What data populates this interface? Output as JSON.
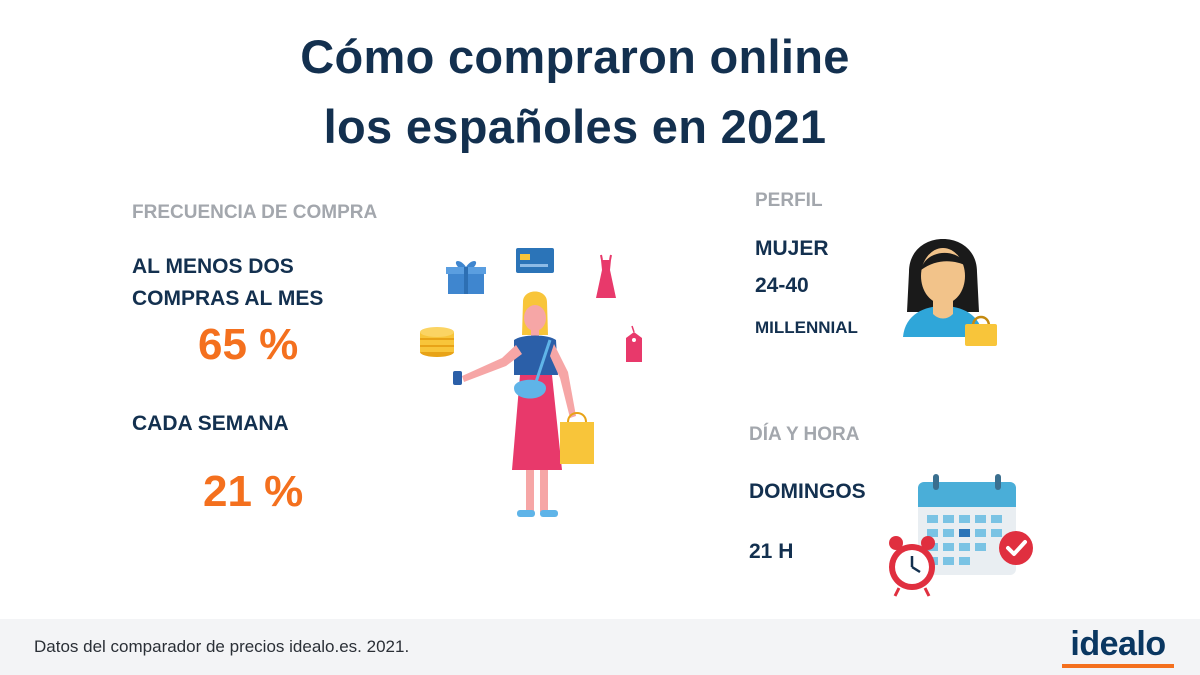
{
  "title": {
    "line1": "Cómo compraron online",
    "line2": "los españoles en 2021"
  },
  "frecuencia": {
    "heading": "FRECUENCIA DE COMPRA",
    "item1_line1": "AL MENOS DOS",
    "item1_line2": "COMPRAS AL MES",
    "item1_value": "65 %",
    "item2_label": "CADA SEMANA",
    "item2_value": "21 %"
  },
  "perfil": {
    "heading": "PERFIL",
    "gender": "MUJER",
    "age": "24-40",
    "generation": "MILLENNIAL"
  },
  "dia_hora": {
    "heading": "DÍA Y HORA",
    "day": "DOMINGOS",
    "hour": "21 H"
  },
  "footer": {
    "source": "Datos del comparador de precios idealo.es. 2021.",
    "logo": "idealo"
  },
  "colors": {
    "navy": "#13304f",
    "orange": "#f4701e",
    "grey_label": "#a3a7ad",
    "pink": "#e8396b",
    "blue": "#2b74b8",
    "yellow": "#f8c53a"
  }
}
